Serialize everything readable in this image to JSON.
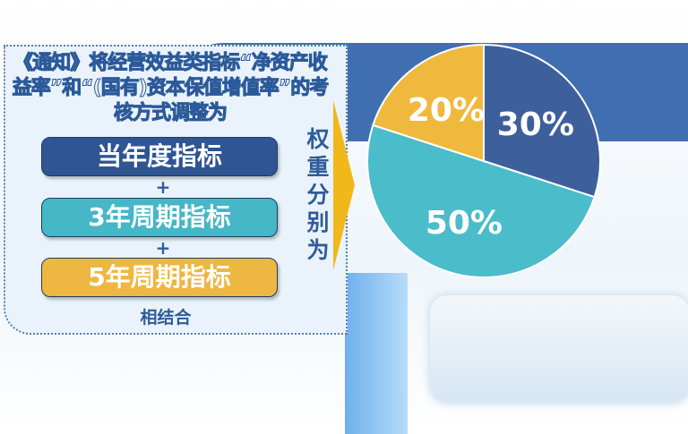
{
  "intro_text": "《通知》将经营效益类指标“净资产收益率”和“(国有)资本保值增值率”的考核方式调整为",
  "indicators": [
    {
      "label": "当年度指标",
      "color": "#2f5592"
    },
    {
      "label": "3年周期指标",
      "color": "#45b7c6"
    },
    {
      "label": "5年周期指标",
      "color": "#eeb741"
    }
  ],
  "plus_sign": "+",
  "combine_text": "相结合",
  "weights_label": "权重分别为",
  "chart_data": {
    "type": "pie",
    "categories": [
      "当年度指标",
      "3年周期指标",
      "5年周期指标"
    ],
    "values": [
      30,
      50,
      20
    ],
    "labels": [
      "30%",
      "50%",
      "20%"
    ],
    "colors": [
      "#3d5f9c",
      "#4bbcc9",
      "#efb93e"
    ]
  }
}
